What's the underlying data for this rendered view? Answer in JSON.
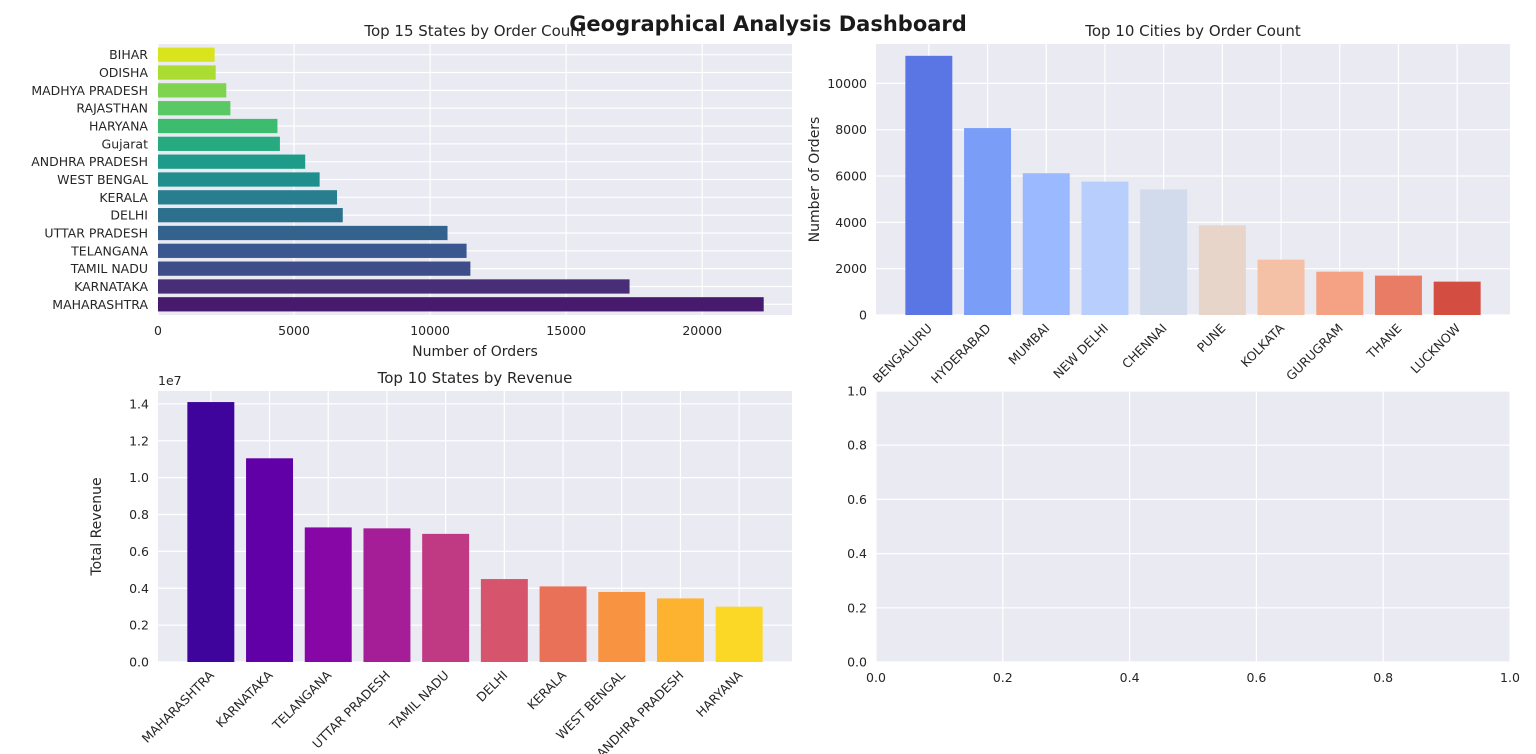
{
  "suptitle": "Geographical Analysis Dashboard",
  "chart_data": [
    {
      "type": "bar",
      "orientation": "horizontal",
      "title": "Top 15 States by Order Count",
      "xlabel": "Number of Orders",
      "ylabel": "",
      "xlim": [
        0,
        23300
      ],
      "xticks": [
        0,
        5000,
        10000,
        15000,
        20000
      ],
      "xtick_labels": [
        "0",
        "5000",
        "10000",
        "15000",
        "20000"
      ],
      "categories": [
        "MAHARASHTRA",
        "KARNATAKA",
        "TAMIL NADU",
        "TELANGANA",
        "UTTAR PRADESH",
        "DELHI",
        "KERALA",
        "WEST BENGAL",
        "ANDHRA PRADESH",
        "Gujarat",
        "HARYANA",
        "RAJASTHAN",
        "MADHYA PRADESH",
        "ODISHA",
        "BIHAR"
      ],
      "values": [
        22260,
        17330,
        11480,
        11340,
        10640,
        6790,
        6580,
        5940,
        5410,
        4480,
        4390,
        2660,
        2510,
        2120,
        2080
      ],
      "colors": [
        "#471a6d",
        "#482e77",
        "#3e4c89",
        "#3b5790",
        "#33638d",
        "#2d708e",
        "#287d8e",
        "#208e8c",
        "#1f9c89",
        "#27aa7f",
        "#3dbb6f",
        "#5ac864",
        "#7ed34f",
        "#aadc32",
        "#d8e41e"
      ],
      "grid": true
    },
    {
      "type": "bar",
      "title": "Top 10 Cities by Order Count",
      "xlabel": "",
      "ylabel": "Number of Orders",
      "ylim": [
        0,
        11700
      ],
      "yticks": [
        0,
        2000,
        4000,
        6000,
        8000,
        10000
      ],
      "ytick_labels": [
        "0",
        "2000",
        "4000",
        "6000",
        "8000",
        "10000"
      ],
      "categories": [
        "BENGALURU",
        "HYDERABAD",
        "MUMBAI",
        "NEW DELHI",
        "CHENNAI",
        "PUNE",
        "KOLKATA",
        "GURUGRAM",
        "THANE",
        "LUCKNOW"
      ],
      "values": [
        11190,
        8070,
        6120,
        5760,
        5420,
        3870,
        2390,
        1870,
        1700,
        1440
      ],
      "colors": [
        "#5a76e4",
        "#7a9df8",
        "#9ab9ff",
        "#b8cffd",
        "#d1dbec",
        "#e8d5ca",
        "#f4c0a6",
        "#f4a184",
        "#e97c65",
        "#d44d41"
      ],
      "grid": true
    },
    {
      "type": "bar",
      "title": "Top 10 States by Revenue",
      "xlabel": "",
      "ylabel": "Total Revenue",
      "offset_label": "1e7",
      "ylim": [
        0,
        1.47
      ],
      "yticks": [
        0.0,
        0.2,
        0.4,
        0.6,
        0.8,
        1.0,
        1.2,
        1.4
      ],
      "ytick_labels": [
        "0.0",
        "0.2",
        "0.4",
        "0.6",
        "0.8",
        "1.0",
        "1.2",
        "1.4"
      ],
      "categories": [
        "MAHARASHTRA",
        "KARNATAKA",
        "TELANGANA",
        "UTTAR PRADESH",
        "TAMIL NADU",
        "DELHI",
        "KERALA",
        "WEST BENGAL",
        "ANDHRA PRADESH",
        "HARYANA"
      ],
      "values": [
        1.41,
        1.105,
        0.73,
        0.725,
        0.695,
        0.45,
        0.41,
        0.38,
        0.345,
        0.3
      ],
      "colors": [
        "#3e049c",
        "#6100a7",
        "#8707a6",
        "#a61e97",
        "#c03a83",
        "#d6556d",
        "#e97158",
        "#f89441",
        "#fdb32f",
        "#fad825"
      ],
      "grid": true
    },
    {
      "type": "scatter",
      "title": "",
      "xlabel": "",
      "ylabel": "",
      "xlim": [
        0,
        1
      ],
      "ylim": [
        0,
        1
      ],
      "xticks": [
        0.0,
        0.2,
        0.4,
        0.6,
        0.8,
        1.0
      ],
      "xtick_labels": [
        "0.0",
        "0.2",
        "0.4",
        "0.6",
        "0.8",
        "1.0"
      ],
      "yticks": [
        0.0,
        0.2,
        0.4,
        0.6,
        0.8,
        1.0
      ],
      "ytick_labels": [
        "0.0",
        "0.2",
        "0.4",
        "0.6",
        "0.8",
        "1.0"
      ],
      "series": [],
      "grid": true
    }
  ]
}
